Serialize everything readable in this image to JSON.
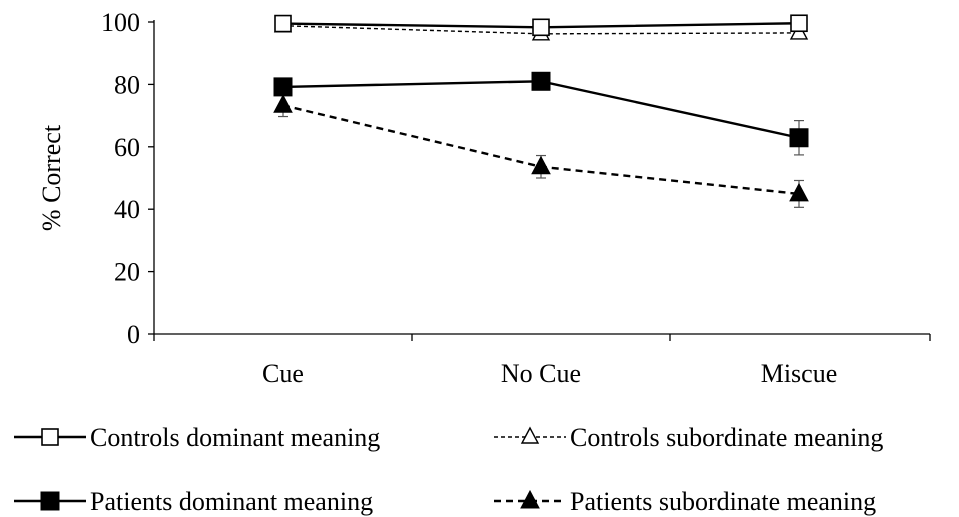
{
  "chart_data": {
    "type": "line",
    "title": "",
    "xlabel": "",
    "ylabel": "% Correct",
    "categories": [
      "Cue",
      "No Cue",
      "Miscue"
    ],
    "ylim": [
      0,
      100
    ],
    "yticks": [
      0,
      20,
      40,
      60,
      80,
      100
    ],
    "grid": false,
    "legend_position": "bottom",
    "series": [
      {
        "name": "Controls dominant meaning",
        "values": [
          99.5,
          98.3,
          99.6
        ],
        "errors": [
          0.5,
          0.8,
          0.5
        ],
        "line_style": "solid",
        "marker": "square-open",
        "color": "#000000"
      },
      {
        "name": "Controls subordinate meaning",
        "values": [
          98.8,
          96.2,
          96.5
        ],
        "errors": [
          0.6,
          1.2,
          1.0
        ],
        "line_style": "dashed",
        "marker": "triangle-open",
        "color": "#000000"
      },
      {
        "name": "Patients dominant meaning",
        "values": [
          79.2,
          81.0,
          62.9
        ],
        "errors": [
          2.0,
          2.0,
          5.5
        ],
        "line_style": "solid",
        "marker": "square-filled",
        "color": "#000000"
      },
      {
        "name": "Patients subordinate meaning",
        "values": [
          73.3,
          53.6,
          44.9
        ],
        "errors": [
          3.6,
          3.6,
          4.3
        ],
        "line_style": "dashed",
        "marker": "triangle-filled",
        "color": "#000000"
      }
    ]
  }
}
